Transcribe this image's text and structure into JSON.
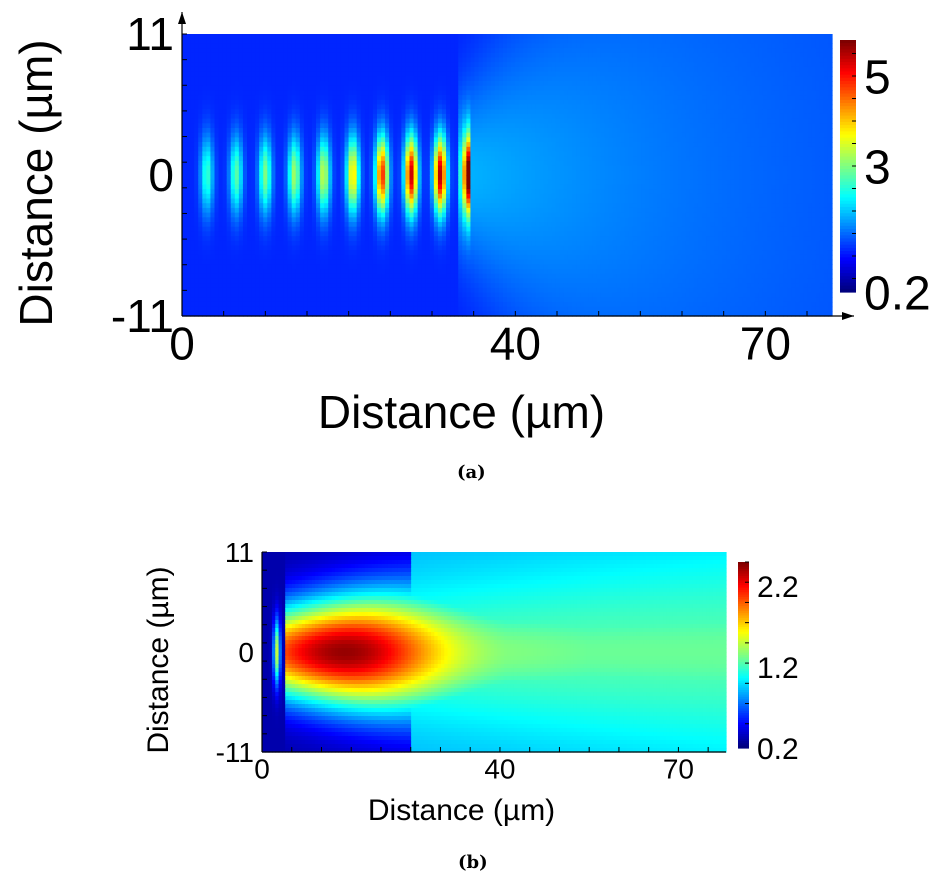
{
  "colormap": {
    "name": "jet",
    "stops": [
      "#00007f",
      "#0000ff",
      "#0080ff",
      "#00ffff",
      "#80ff80",
      "#ffff00",
      "#ff8000",
      "#ff0000",
      "#7f0000"
    ]
  },
  "chart_data": [
    {
      "type": "heatmap",
      "caption": "(a)",
      "xlabel": "Distance (µm)",
      "ylabel": "Distance (µm)",
      "xticks": [
        0,
        40,
        70
      ],
      "yticks": [
        11,
        0,
        -11
      ],
      "xlim": [
        0,
        78
      ],
      "ylim": [
        -11,
        11
      ],
      "colorbar": {
        "ticks": [
          5,
          3,
          0.2
        ],
        "range": [
          0.2,
          5.8
        ]
      },
      "field": {
        "description_kind": "periodic focal spots along y=0 growing in intensity, then diffuse cone",
        "spot_x": [
          3,
          6.5,
          10,
          13.5,
          17,
          20.5,
          24,
          27.5,
          31,
          34.5
        ],
        "spot_peak": [
          2.6,
          2.8,
          3.0,
          3.2,
          3.4,
          3.9,
          4.9,
          5.4,
          5.5,
          5.6
        ],
        "interface_x": 33,
        "background": 1.1,
        "cone_level": 1.9
      }
    },
    {
      "type": "heatmap",
      "caption": "(b)",
      "xlabel": "Distance (µm)",
      "ylabel": "Distance (µm)",
      "xticks": [
        0,
        40,
        70
      ],
      "yticks": [
        11,
        0,
        -11
      ],
      "xlim": [
        0,
        78
      ],
      "ylim": [
        -11,
        11
      ],
      "colorbar": {
        "ticks": [
          2.2,
          1.2,
          0.2
        ],
        "range": [
          0.2,
          2.5
        ]
      },
      "field": {
        "description_kind": "broad elongated hot lobe centered near x=15 decaying along x",
        "lobe_center_x": 14,
        "lobe_peak": 2.45,
        "far_level": 1.3,
        "edge_level": 0.3,
        "thin_spot_x": 2.5
      }
    }
  ]
}
